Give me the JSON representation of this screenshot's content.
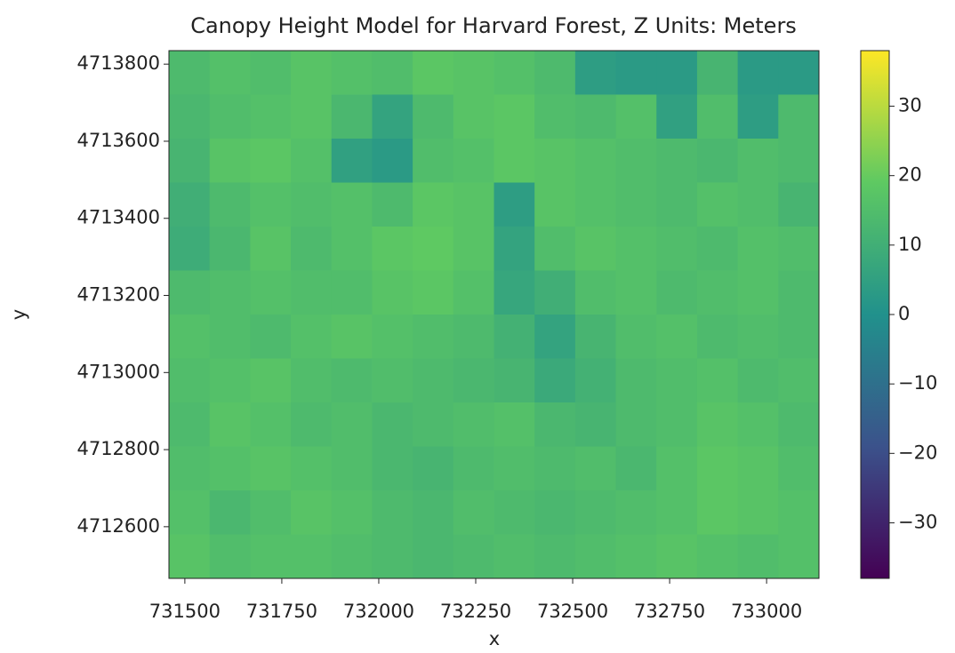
{
  "chart_data": {
    "type": "raster",
    "title": "Canopy Height Model for Harvard Forest, Z Units: Meters",
    "xlabel": "x",
    "ylabel": "y",
    "xlim": [
      731459,
      733135
    ],
    "xticks": [
      731500,
      731750,
      732000,
      732250,
      732500,
      732750,
      733000
    ],
    "ylim": [
      4712466,
      4713835
    ],
    "yticks": [
      4712600,
      4712800,
      4713000,
      4713200,
      4713400,
      4713600,
      4713800
    ],
    "cmap": "viridis",
    "clim": [
      -38,
      38
    ],
    "cticks": [
      {
        "value": -30,
        "label": "−30"
      },
      {
        "value": -20,
        "label": "−20"
      },
      {
        "value": -10,
        "label": "−10"
      },
      0,
      10,
      20,
      30
    ],
    "z": [
      [
        14,
        16,
        15,
        17,
        16,
        15,
        18,
        17,
        16,
        14,
        4,
        3,
        3,
        12,
        3,
        3
      ],
      [
        13,
        15,
        16,
        17,
        13,
        6,
        14,
        17,
        18,
        15,
        14,
        16,
        5,
        15,
        4,
        14
      ],
      [
        12,
        17,
        18,
        16,
        5,
        3,
        15,
        16,
        18,
        17,
        16,
        15,
        14,
        13,
        15,
        14
      ],
      [
        10,
        14,
        16,
        15,
        16,
        14,
        18,
        17,
        4,
        17,
        16,
        15,
        14,
        16,
        15,
        12
      ],
      [
        9,
        13,
        17,
        14,
        16,
        18,
        19,
        17,
        6,
        15,
        17,
        16,
        15,
        14,
        16,
        15
      ],
      [
        14,
        15,
        16,
        15,
        15,
        17,
        18,
        16,
        7,
        10,
        15,
        16,
        14,
        15,
        16,
        14
      ],
      [
        16,
        15,
        14,
        16,
        17,
        16,
        15,
        14,
        11,
        6,
        12,
        15,
        16,
        14,
        15,
        14
      ],
      [
        15,
        16,
        17,
        15,
        14,
        15,
        14,
        13,
        12,
        8,
        11,
        14,
        15,
        16,
        14,
        15
      ],
      [
        14,
        17,
        16,
        14,
        15,
        13,
        14,
        15,
        16,
        13,
        12,
        14,
        15,
        17,
        16,
        14
      ],
      [
        15,
        16,
        17,
        16,
        15,
        13,
        12,
        14,
        15,
        14,
        15,
        13,
        16,
        18,
        17,
        15
      ],
      [
        16,
        13,
        15,
        17,
        16,
        14,
        13,
        15,
        14,
        13,
        14,
        15,
        16,
        18,
        17,
        16
      ],
      [
        17,
        15,
        16,
        16,
        15,
        14,
        13,
        14,
        15,
        14,
        15,
        16,
        17,
        16,
        15,
        16
      ]
    ]
  }
}
